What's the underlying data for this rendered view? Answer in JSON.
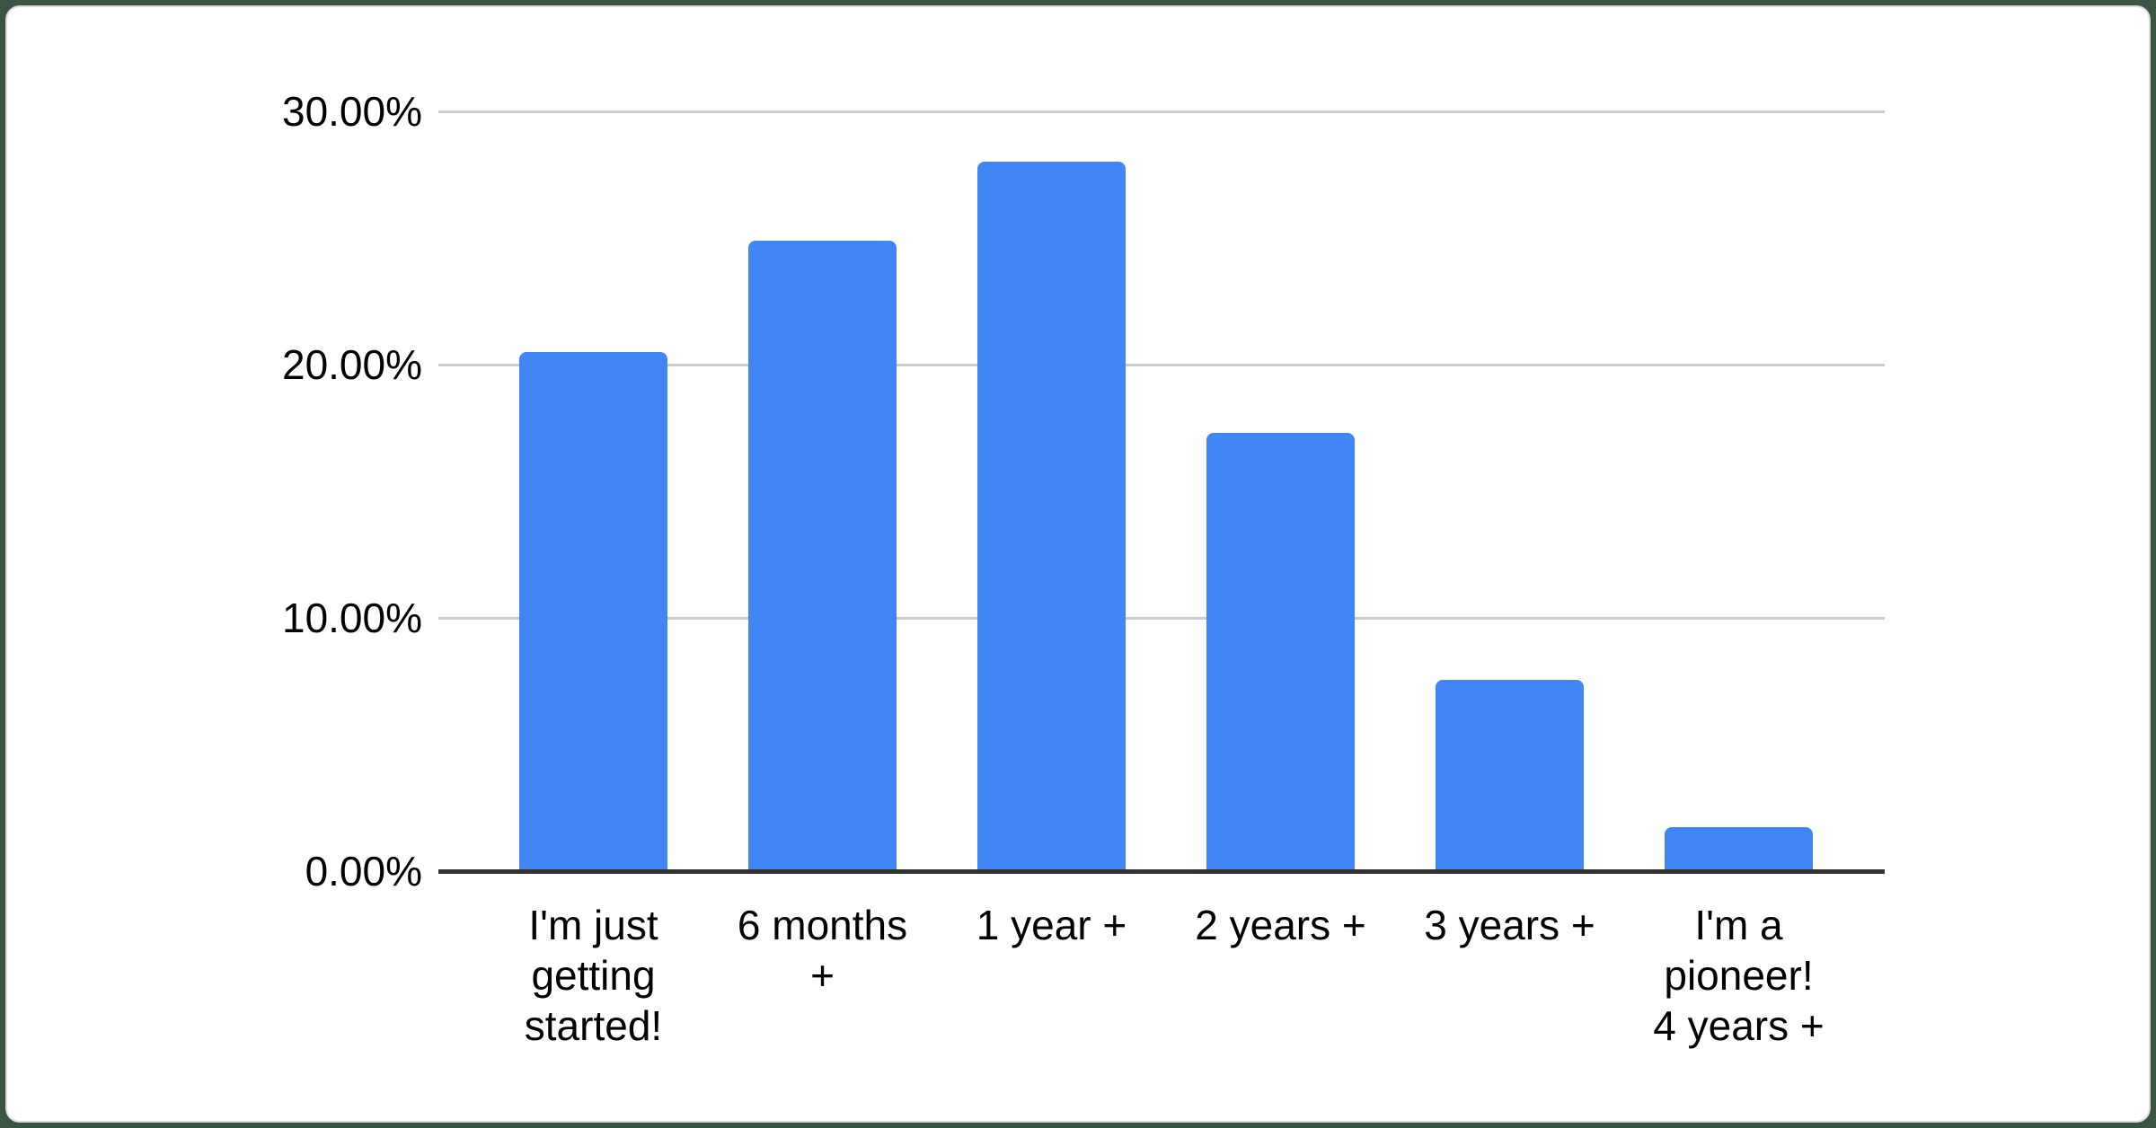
{
  "page": {
    "background_color": "#3b5744"
  },
  "card": {
    "background_color": "#ffffff",
    "border_color": "#d9dbde"
  },
  "chart_data": {
    "type": "bar",
    "title": "",
    "categories": [
      "I'm just\ngetting\nstarted!",
      "6 months\n+",
      "1 year +",
      "2 years +",
      "3 years +",
      "I'm a\npioneer!\n4 years +"
    ],
    "values": [
      20.5,
      24.9,
      28.0,
      17.3,
      7.55,
      1.75
    ],
    "value_unit": "%",
    "xlabel": "",
    "ylabel": "",
    "ylim": [
      0,
      30
    ],
    "y_tick_interval": 10,
    "y_ticks": [
      {
        "label": "30.00%",
        "value": 30
      },
      {
        "label": "20.00%",
        "value": 20
      },
      {
        "label": "10.00%",
        "value": 10
      },
      {
        "label": "0.00%",
        "value": 0
      }
    ],
    "grid": true,
    "legend": "none",
    "bar_color": "#4285F4",
    "gridline_color": "#cccccc",
    "baseline_color": "#333333",
    "label_color": "#000000"
  }
}
